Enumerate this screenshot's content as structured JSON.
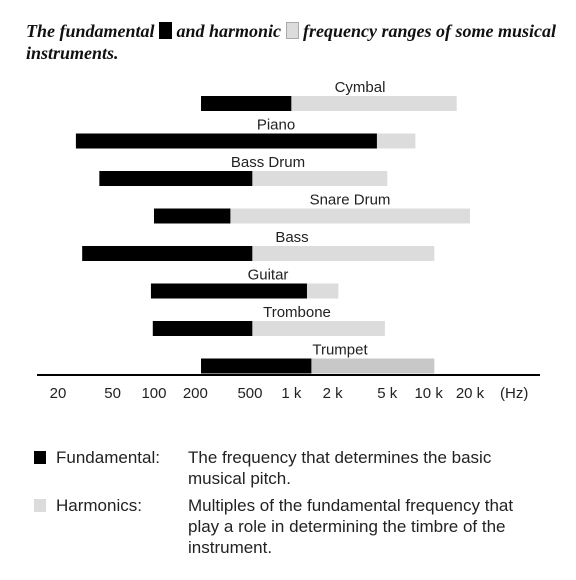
{
  "title": {
    "part1": "The fundamental",
    "part2": "and harmonic",
    "part3": "frequency ranges of some musical instruments."
  },
  "colors": {
    "fundamental": "#000000",
    "harmonics": "#dcdcdc",
    "trumpet_harmonics": "#c8c8c8"
  },
  "chart_data": {
    "type": "bar",
    "orientation": "horizontal-range",
    "x_scale": "log",
    "x_unit": "(Hz)",
    "xlim": [
      20,
      25000
    ],
    "tick_labels": [
      {
        "label": "20",
        "value": 20
      },
      {
        "label": "50",
        "value": 50
      },
      {
        "label": "100",
        "value": 100
      },
      {
        "label": "200",
        "value": 200
      },
      {
        "label": "500",
        "value": 500
      },
      {
        "label": "1 k",
        "value": 1000
      },
      {
        "label": "2 k",
        "value": 2000
      },
      {
        "label": "5 k",
        "value": 5000
      },
      {
        "label": "10 k",
        "value": 10000
      },
      {
        "label": "20 k",
        "value": 20000
      }
    ],
    "series": [
      {
        "name": "Fundamental",
        "color": "#000000"
      },
      {
        "name": "Harmonics",
        "color": "#dcdcdc"
      }
    ],
    "instruments": [
      {
        "name": "Cymbal",
        "fundamental": [
          220,
          1000
        ],
        "harmonics": [
          1000,
          16000
        ]
      },
      {
        "name": "Piano",
        "fundamental": [
          27,
          4200
        ],
        "harmonics": [
          4200,
          8000
        ]
      },
      {
        "name": "Bass Drum",
        "fundamental": [
          40,
          520
        ],
        "harmonics": [
          520,
          5000
        ]
      },
      {
        "name": "Snare Drum",
        "fundamental": [
          100,
          360
        ],
        "harmonics": [
          360,
          20000
        ]
      },
      {
        "name": "Bass",
        "fundamental": [
          30,
          520
        ],
        "harmonics": [
          520,
          11000
        ]
      },
      {
        "name": "Guitar",
        "fundamental": [
          95,
          1300
        ],
        "harmonics": [
          1300,
          2200
        ]
      },
      {
        "name": "Trombone",
        "fundamental": [
          98,
          520
        ],
        "harmonics": [
          520,
          4800
        ]
      },
      {
        "name": "Trumpet",
        "fundamental": [
          220,
          1400
        ],
        "harmonics": [
          1400,
          11000
        ]
      }
    ]
  },
  "legend": [
    {
      "name": "Fundamental:",
      "description": "The frequency that determines the basic musical pitch."
    },
    {
      "name": "Harmonics:",
      "description": "Multiples of the fundamental frequency that play a role in determining the timbre of the instrument."
    }
  ]
}
